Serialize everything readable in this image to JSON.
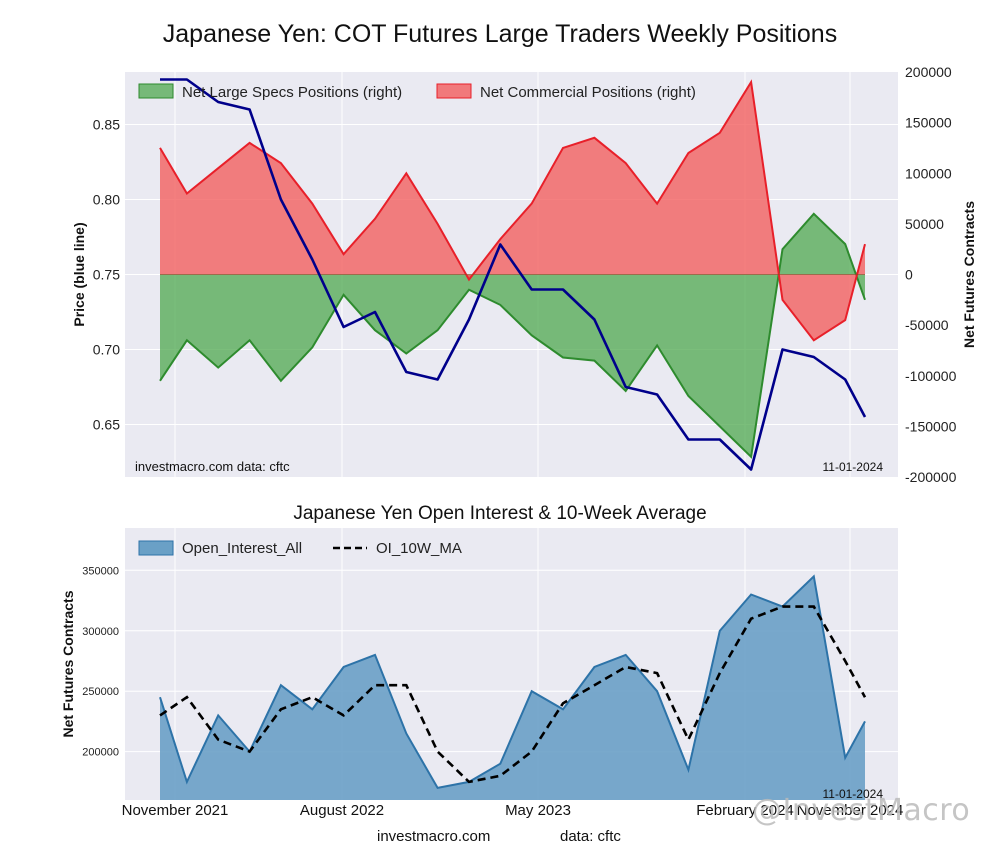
{
  "figure": {
    "title": "Japanese Yen: COT Futures Large Traders Weekly Positions",
    "footer_source": "investmacro.com",
    "footer_data": "data: cftc",
    "watermark": "@InvestMacro"
  },
  "colors": {
    "panel_bg": "#eaeaf2",
    "price_line": "#00008b",
    "specs_fill": "#4fa84f",
    "specs_edge": "#2e8b2e",
    "comm_fill": "#f25c5c",
    "comm_edge": "#e8202a",
    "oi_fill": "#6aa0c6",
    "oi_edge": "#2d73a8",
    "ma_line": "#000000"
  },
  "chart_data": [
    {
      "type": "line",
      "title": "",
      "ylabel_left": "Price (blue line)",
      "ylabel_right": "Net Futures Contracts",
      "left_ticks": [
        "0.65",
        "0.70",
        "0.75",
        "0.80",
        "0.85"
      ],
      "right_ticks": [
        "-200000",
        "-150000",
        "-100000",
        "-50000",
        "0",
        "50000",
        "100000",
        "150000",
        "200000"
      ],
      "ylim_left": [
        0.615,
        0.885
      ],
      "ylim_right": [
        -200000,
        200000
      ],
      "annotation_left": "investmacro.com    data: cftc",
      "annotation_right": "11-01-2024",
      "legend": [
        "Net Large Specs Positions (right)",
        "Net Commercial Positions (right)"
      ],
      "legend_position": "top-left",
      "x_dates": [
        "2021-10-26",
        "2021-12-07",
        "2022-01-25",
        "2022-03-15",
        "2022-05-03",
        "2022-06-21",
        "2022-08-09",
        "2022-09-27",
        "2022-11-15",
        "2023-01-03",
        "2023-02-21",
        "2023-04-11",
        "2023-05-30",
        "2023-07-18",
        "2023-09-05",
        "2023-10-24",
        "2023-12-12",
        "2024-01-30",
        "2024-03-19",
        "2024-05-07",
        "2024-06-25",
        "2024-08-13",
        "2024-10-01",
        "2024-11-01"
      ],
      "price": [
        0.88,
        0.88,
        0.865,
        0.86,
        0.8,
        0.76,
        0.715,
        0.725,
        0.685,
        0.68,
        0.72,
        0.77,
        0.74,
        0.74,
        0.72,
        0.675,
        0.67,
        0.64,
        0.64,
        0.62,
        0.7,
        0.695,
        0.68,
        0.655
      ],
      "series": [
        {
          "name": "Net Large Specs Positions (right)",
          "values": [
            -105000,
            -65000,
            -92000,
            -65000,
            -105000,
            -72000,
            -20000,
            -55000,
            -78000,
            -55000,
            -15000,
            -30000,
            -60000,
            -82000,
            -85000,
            -115000,
            -70000,
            -120000,
            -150000,
            -180000,
            25000,
            60000,
            30000,
            -25000
          ]
        },
        {
          "name": "Net Commercial Positions (right)",
          "values": [
            125000,
            80000,
            105000,
            130000,
            110000,
            70000,
            20000,
            55000,
            100000,
            50000,
            -5000,
            35000,
            70000,
            125000,
            135000,
            110000,
            70000,
            120000,
            140000,
            190000,
            -25000,
            -65000,
            -45000,
            30000
          ]
        }
      ]
    },
    {
      "type": "area",
      "title": "Japanese Yen Open Interest & 10-Week Average",
      "ylabel": "Net Futures Contracts",
      "y_ticks": [
        "200000",
        "250000",
        "300000",
        "350000"
      ],
      "ylim": [
        160000,
        385000
      ],
      "annotation_right": "11-01-2024",
      "x_tick_labels": [
        "November 2021",
        "August 2022",
        "May 2023",
        "February 2024",
        "November 2024"
      ],
      "legend": [
        "Open_Interest_All",
        "OI_10W_MA"
      ],
      "legend_position": "top-left",
      "x_dates": [
        "2021-10-26",
        "2021-12-07",
        "2022-01-25",
        "2022-03-15",
        "2022-05-03",
        "2022-06-21",
        "2022-08-09",
        "2022-09-27",
        "2022-11-15",
        "2023-01-03",
        "2023-02-21",
        "2023-04-11",
        "2023-05-30",
        "2023-07-18",
        "2023-09-05",
        "2023-10-24",
        "2023-12-12",
        "2024-01-30",
        "2024-03-19",
        "2024-05-07",
        "2024-06-25",
        "2024-08-13",
        "2024-10-01",
        "2024-11-01"
      ],
      "series": [
        {
          "name": "Open_Interest_All",
          "values": [
            245000,
            175000,
            230000,
            200000,
            255000,
            235000,
            270000,
            280000,
            215000,
            170000,
            175000,
            190000,
            250000,
            235000,
            270000,
            280000,
            250000,
            185000,
            300000,
            330000,
            320000,
            345000,
            195000,
            225000
          ]
        },
        {
          "name": "OI_10W_MA",
          "values": [
            230000,
            245000,
            210000,
            200000,
            235000,
            245000,
            230000,
            255000,
            255000,
            200000,
            175000,
            180000,
            200000,
            240000,
            255000,
            270000,
            265000,
            210000,
            265000,
            310000,
            320000,
            320000,
            275000,
            245000
          ]
        }
      ]
    }
  ]
}
